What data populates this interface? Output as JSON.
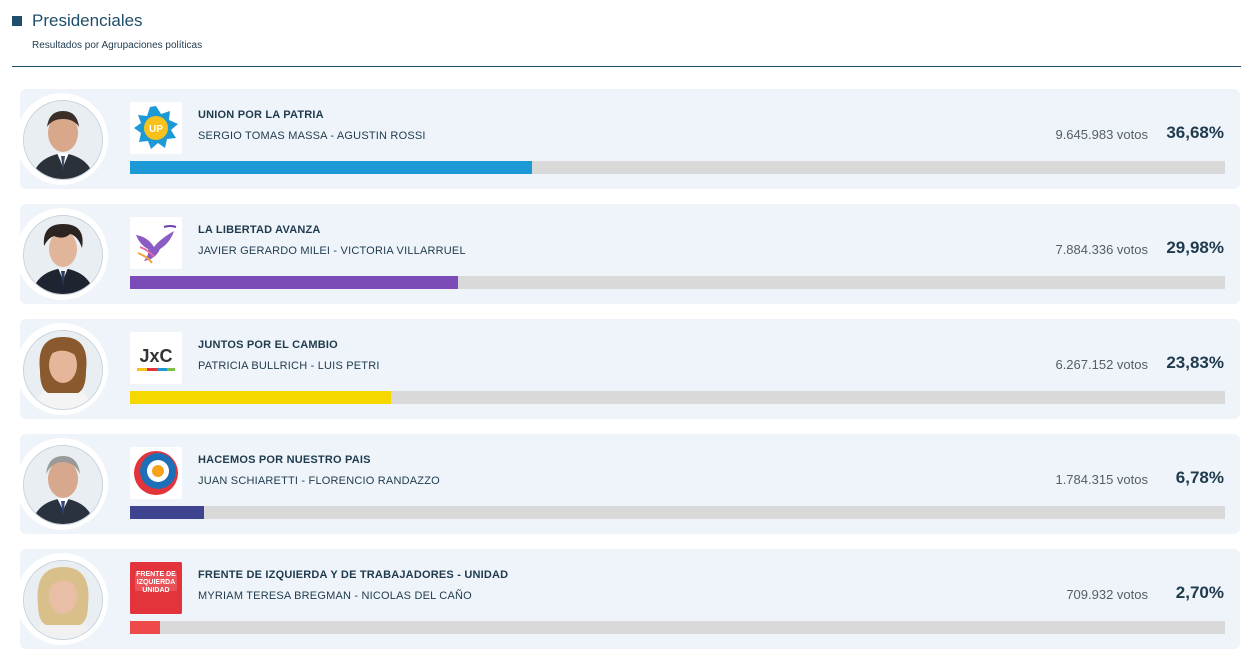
{
  "header": {
    "title": "Presidenciales",
    "subtitle": "Resultados por Agrupaciones políticas"
  },
  "results": [
    {
      "party": "UNION POR LA PATRIA",
      "candidates": "SERGIO TOMAS MASSA  -  AGUSTIN ROSSI",
      "votes": "9.645.983 votos",
      "percent": "36,68%",
      "share": 36.68,
      "color": "#1d9ad6",
      "logo_icon": "union-por-la-patria-logo",
      "logo_text": "UP"
    },
    {
      "party": "LA LIBERTAD AVANZA",
      "candidates": "JAVIER GERARDO MILEI  -  VICTORIA VILLARRUEL",
      "votes": "7.884.336 votos",
      "percent": "29,98%",
      "share": 29.98,
      "color": "#7b4bb8",
      "logo_icon": "la-libertad-avanza-logo"
    },
    {
      "party": "JUNTOS POR EL CAMBIO",
      "candidates": "PATRICIA BULLRICH  -  LUIS PETRI",
      "votes": "6.267.152 votos",
      "percent": "23,83%",
      "share": 23.83,
      "color": "#f5d800",
      "logo_icon": "juntos-por-el-cambio-logo",
      "logo_text": "JxC"
    },
    {
      "party": "HACEMOS POR NUESTRO PAIS",
      "candidates": "JUAN SCHIARETTI  -  FLORENCIO RANDAZZO",
      "votes": "1.784.315 votos",
      "percent": "6,78%",
      "share": 6.78,
      "color": "#3f4490",
      "logo_icon": "hacemos-por-nuestro-pais-logo"
    },
    {
      "party": "FRENTE DE IZQUIERDA Y DE TRABAJADORES - UNIDAD",
      "candidates": "MYRIAM TERESA BREGMAN  -  NICOLAS DEL CAÑO",
      "votes": "709.932 votos",
      "percent": "2,70%",
      "share": 2.7,
      "color": "#ef4a4a",
      "logo_icon": "frente-de-izquierda-logo",
      "logo_text": "FRENTE DE IZQUIERDA UNIDAD"
    }
  ]
}
